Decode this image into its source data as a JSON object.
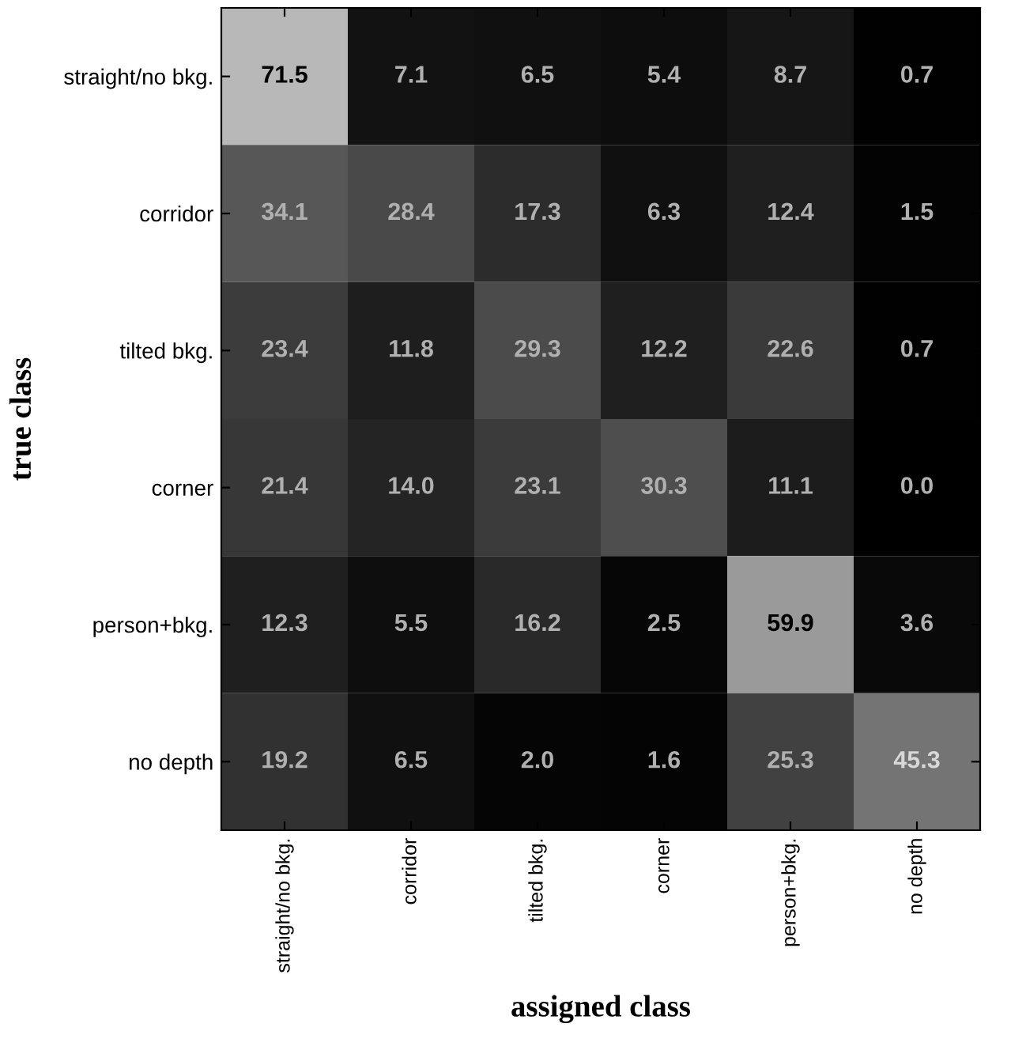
{
  "chart_data": {
    "type": "heatmap",
    "xlabel": "assigned class",
    "ylabel": "true class",
    "categories": [
      "straight/no bkg.",
      "corridor",
      "tilted bkg.",
      "corner",
      "person+bkg.",
      "no depth"
    ],
    "y_categories": [
      "straight/no bkg.",
      "corridor",
      "tilted bkg.",
      "corner",
      "person+bkg.",
      "no depth"
    ],
    "cells": [
      [
        71.5,
        7.1,
        6.5,
        5.4,
        8.7,
        0.7
      ],
      [
        34.1,
        28.4,
        17.3,
        6.3,
        12.4,
        1.5
      ],
      [
        23.4,
        11.8,
        29.3,
        12.2,
        22.6,
        0.7
      ],
      [
        21.4,
        14.0,
        23.1,
        30.3,
        11.1,
        0.0
      ],
      [
        12.3,
        5.5,
        16.2,
        2.5,
        59.9,
        3.6
      ],
      [
        19.2,
        6.5,
        2.0,
        1.6,
        25.3,
        45.3
      ]
    ],
    "cell_labels": [
      [
        "71.5",
        "7.1",
        "6.5",
        "5.4",
        "8.7",
        "0.7"
      ],
      [
        "34.1",
        "28.4",
        "17.3",
        "6.3",
        "12.4",
        "1.5"
      ],
      [
        "23.4",
        "11.8",
        "29.3",
        "12.2",
        "22.6",
        "0.7"
      ],
      [
        "21.4",
        "14.0",
        "23.1",
        "30.3",
        "11.1",
        "0.0"
      ],
      [
        "12.3",
        "5.5",
        "16.2",
        "2.5",
        "59.9",
        "3.6"
      ],
      [
        "19.2",
        "6.5",
        "2.0",
        "1.6",
        "25.3",
        "45.3"
      ]
    ]
  }
}
